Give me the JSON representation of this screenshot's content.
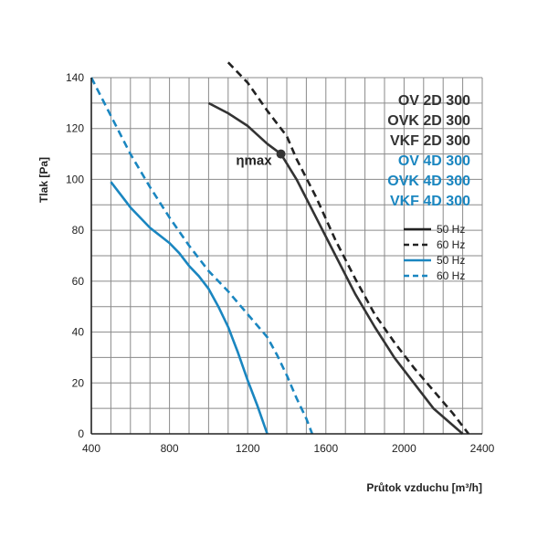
{
  "chart_data": {
    "type": "line",
    "xlabel": "Průtok vzduchu [m³/h]",
    "ylabel": "Tlak [Pa]",
    "xlim": [
      400,
      2400
    ],
    "ylim": [
      0,
      140
    ],
    "x_ticks": [
      "400",
      "800",
      "1200",
      "1600",
      "2000",
      "2400"
    ],
    "y_ticks": [
      "0",
      "20",
      "40",
      "60",
      "80",
      "100",
      "120",
      "140"
    ],
    "grid": true,
    "models": [
      {
        "label": "OV 2D 300",
        "color": "#333333"
      },
      {
        "label": "OVK 2D 300",
        "color": "#333333"
      },
      {
        "label": "VKF 2D 300",
        "color": "#333333"
      },
      {
        "label": "OV 4D 300",
        "color": "#1a86c0"
      },
      {
        "label": "OVK 4D 300",
        "color": "#1a86c0"
      },
      {
        "label": "VKF 4D 300",
        "color": "#1a86c0"
      }
    ],
    "legend": [
      {
        "label": "50 Hz",
        "color": "#222222",
        "dash": "solid"
      },
      {
        "label": "60 Hz",
        "color": "#222222",
        "dash": "dashed"
      },
      {
        "label": "50 Hz",
        "color": "#1a86c0",
        "dash": "solid"
      },
      {
        "label": "60 Hz",
        "color": "#1a86c0",
        "dash": "dashed"
      }
    ],
    "series": [
      {
        "color": "#333333",
        "dash": "solid",
        "points": [
          [
            1000,
            130
          ],
          [
            1100,
            126
          ],
          [
            1200,
            121
          ],
          [
            1300,
            114
          ],
          [
            1370,
            110
          ],
          [
            1450,
            100
          ],
          [
            1550,
            85
          ],
          [
            1650,
            70
          ],
          [
            1750,
            55
          ],
          [
            1850,
            42
          ],
          [
            1950,
            30
          ],
          [
            2050,
            20
          ],
          [
            2150,
            10
          ],
          [
            2300,
            0
          ]
        ]
      },
      {
        "color": "#222222",
        "dash": "dashed",
        "points": [
          [
            1100,
            146
          ],
          [
            1200,
            138
          ],
          [
            1300,
            127
          ],
          [
            1400,
            117
          ],
          [
            1450,
            108
          ],
          [
            1550,
            93
          ],
          [
            1650,
            76
          ],
          [
            1750,
            61
          ],
          [
            1850,
            47
          ],
          [
            1950,
            36
          ],
          [
            2050,
            26
          ],
          [
            2150,
            17
          ],
          [
            2250,
            8
          ],
          [
            2330,
            0
          ]
        ]
      },
      {
        "color": "#1a86c0",
        "dash": "solid",
        "points": [
          [
            500,
            99
          ],
          [
            550,
            94
          ],
          [
            600,
            89
          ],
          [
            700,
            81
          ],
          [
            800,
            75
          ],
          [
            850,
            71
          ],
          [
            900,
            66
          ],
          [
            950,
            62
          ],
          [
            1000,
            57
          ],
          [
            1050,
            50
          ],
          [
            1100,
            42
          ],
          [
            1150,
            32
          ],
          [
            1200,
            21
          ],
          [
            1250,
            11
          ],
          [
            1300,
            0
          ]
        ]
      },
      {
        "color": "#1a86c0",
        "dash": "dashed",
        "points": [
          [
            400,
            140
          ],
          [
            500,
            125
          ],
          [
            600,
            110
          ],
          [
            700,
            97
          ],
          [
            800,
            85
          ],
          [
            900,
            74
          ],
          [
            1000,
            64
          ],
          [
            1100,
            56
          ],
          [
            1200,
            47
          ],
          [
            1300,
            38
          ],
          [
            1350,
            31
          ],
          [
            1400,
            23
          ],
          [
            1450,
            14
          ],
          [
            1500,
            6
          ],
          [
            1530,
            0
          ]
        ]
      }
    ],
    "annotation": {
      "label": "ηmax",
      "x": 1370,
      "y": 110
    }
  }
}
